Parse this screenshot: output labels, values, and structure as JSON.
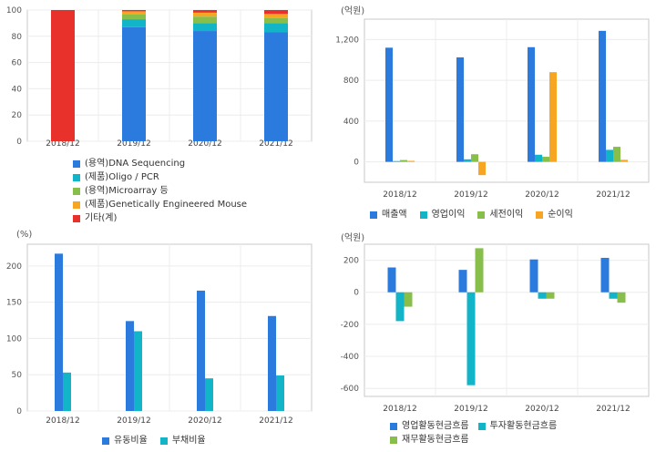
{
  "colors": {
    "blue": "#2b7bdf",
    "teal": "#12b5c8",
    "green": "#88bf4a",
    "orange": "#f6a623",
    "red": "#e8312a"
  },
  "chart_data": [
    {
      "id": "composition",
      "type": "bar",
      "stacked": true,
      "categories": [
        "2018/12",
        "2019/12",
        "2020/12",
        "2021/12"
      ],
      "ylim": [
        0,
        100
      ],
      "yticks": [
        0,
        20,
        40,
        60,
        80,
        100
      ],
      "unit": "",
      "grid": true,
      "legend_position": "bottom",
      "series": [
        {
          "name": "(용역)DNA Sequencing",
          "color": "#2b7bdf",
          "values": [
            0,
            87,
            84,
            83
          ]
        },
        {
          "name": "(제품)Oligo / PCR",
          "color": "#12b5c8",
          "values": [
            0,
            6,
            6,
            7
          ]
        },
        {
          "name": "(용역)Microarray 등",
          "color": "#88bf4a",
          "values": [
            0,
            4,
            5,
            4
          ]
        },
        {
          "name": "(제품)Genetically Engineered Mouse",
          "color": "#f6a623",
          "values": [
            0,
            2,
            3,
            3
          ]
        },
        {
          "name": "기타(계)",
          "color": "#e8312a",
          "values": [
            100,
            1,
            2,
            3
          ]
        }
      ]
    },
    {
      "id": "income",
      "type": "bar",
      "categories": [
        "2018/12",
        "2019/12",
        "2020/12",
        "2021/12"
      ],
      "ylim": [
        -200,
        1400
      ],
      "yticks": [
        0,
        400,
        800,
        1200
      ],
      "ytick_labels": [
        "0",
        "400",
        "800",
        "1,200"
      ],
      "unit": "(억원)",
      "grid": true,
      "legend_position": "bottom",
      "series": [
        {
          "name": "매출액",
          "color": "#2b7bdf",
          "values": [
            1120,
            1025,
            1125,
            1285
          ]
        },
        {
          "name": "영업이익",
          "color": "#12b5c8",
          "values": [
            8,
            25,
            70,
            118
          ]
        },
        {
          "name": "세전이익",
          "color": "#88bf4a",
          "values": [
            18,
            75,
            50,
            148
          ]
        },
        {
          "name": "순이익",
          "color": "#f6a623",
          "values": [
            10,
            -130,
            880,
            20
          ]
        }
      ]
    },
    {
      "id": "ratios",
      "type": "bar",
      "categories": [
        "2018/12",
        "2019/12",
        "2020/12",
        "2021/12"
      ],
      "ylim": [
        0,
        230
      ],
      "yticks": [
        0,
        50,
        100,
        150,
        200
      ],
      "unit": "(%)",
      "grid": true,
      "legend_position": "bottom",
      "series": [
        {
          "name": "유동비율",
          "color": "#2b7bdf",
          "values": [
            217,
            124,
            166,
            131
          ]
        },
        {
          "name": "부채비율",
          "color": "#12b5c8",
          "values": [
            53,
            110,
            45,
            49
          ]
        }
      ]
    },
    {
      "id": "cashflow",
      "type": "bar",
      "categories": [
        "2018/12",
        "2019/12",
        "2020/12",
        "2021/12"
      ],
      "ylim": [
        -650,
        300
      ],
      "yticks": [
        -600,
        -400,
        -200,
        0,
        200
      ],
      "unit": "(억원)",
      "grid": true,
      "legend_position": "bottom",
      "series": [
        {
          "name": "영업활동현금흐름",
          "color": "#2b7bdf",
          "values": [
            155,
            140,
            205,
            215
          ]
        },
        {
          "name": "투자활동현금흐름",
          "color": "#12b5c8",
          "values": [
            -180,
            -580,
            -40,
            -40
          ]
        },
        {
          "name": "재무활동현금흐름",
          "color": "#88bf4a",
          "values": [
            -90,
            275,
            -40,
            -65
          ]
        }
      ]
    }
  ]
}
